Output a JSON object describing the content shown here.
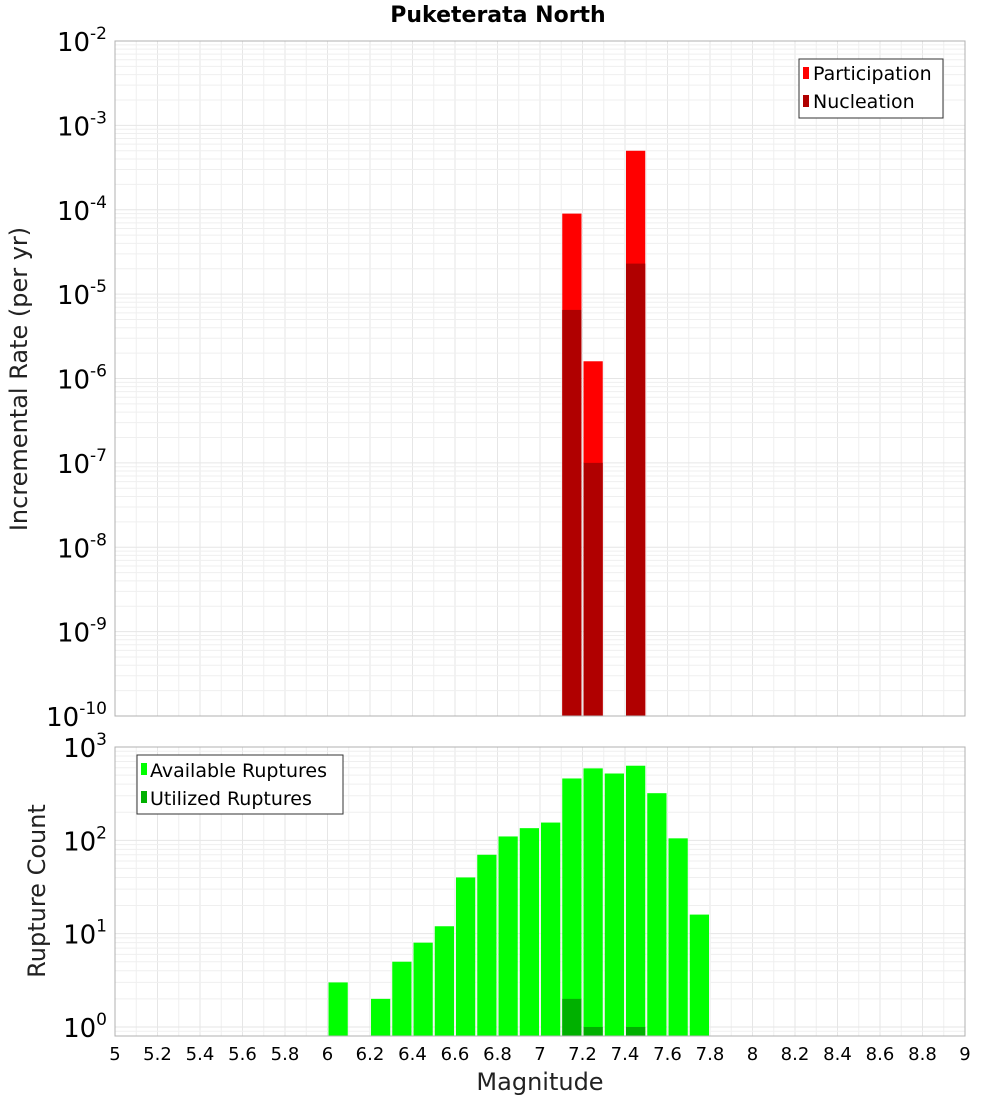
{
  "chart_data": [
    {
      "type": "bar",
      "title": "Puketerata North",
      "xlabel": "",
      "ylabel": "Incremental Rate (per yr)",
      "yscale": "log",
      "ylim": [
        1e-10,
        0.01
      ],
      "xlim": [
        5,
        9
      ],
      "y_ticks": [
        {
          "base": "10",
          "exp": "-2"
        },
        {
          "base": "10",
          "exp": "-3"
        },
        {
          "base": "10",
          "exp": "-4"
        },
        {
          "base": "10",
          "exp": "-5"
        },
        {
          "base": "10",
          "exp": "-6"
        },
        {
          "base": "10",
          "exp": "-7"
        },
        {
          "base": "10",
          "exp": "-8"
        },
        {
          "base": "10",
          "exp": "-9"
        },
        {
          "base": "10",
          "exp": "-10"
        }
      ],
      "legend_position": "top-right",
      "series": [
        {
          "name": "Participation",
          "color": "#ff0000",
          "points": [
            {
              "x": 7.15,
              "y": 9e-05
            },
            {
              "x": 7.25,
              "y": 1.6e-06
            },
            {
              "x": 7.45,
              "y": 0.0005
            }
          ]
        },
        {
          "name": "Nucleation",
          "color": "#b00000",
          "points": [
            {
              "x": 7.15,
              "y": 6.5e-06
            },
            {
              "x": 7.25,
              "y": 1e-07
            },
            {
              "x": 7.45,
              "y": 2.3e-05
            }
          ]
        }
      ]
    },
    {
      "type": "bar",
      "title": "",
      "xlabel": "Magnitude",
      "ylabel": "Rupture Count",
      "yscale": "log",
      "ylim": [
        0.8,
        1000
      ],
      "xlim": [
        5,
        9
      ],
      "x_ticks": [
        "5",
        "5.2",
        "5.4",
        "5.6",
        "5.8",
        "6",
        "6.2",
        "6.4",
        "6.6",
        "6.8",
        "7",
        "7.2",
        "7.4",
        "7.6",
        "7.8",
        "8",
        "8.2",
        "8.4",
        "8.6",
        "8.8",
        "9"
      ],
      "y_ticks": [
        {
          "base": "10",
          "exp": "3"
        },
        {
          "base": "10",
          "exp": "2"
        },
        {
          "base": "10",
          "exp": "1"
        },
        {
          "base": "10",
          "exp": "0"
        }
      ],
      "legend_position": "top-left",
      "series": [
        {
          "name": "Available Ruptures",
          "color": "#00ff00",
          "points": [
            {
              "x": 6.05,
              "y": 3
            },
            {
              "x": 6.25,
              "y": 2
            },
            {
              "x": 6.35,
              "y": 5
            },
            {
              "x": 6.45,
              "y": 8
            },
            {
              "x": 6.55,
              "y": 12
            },
            {
              "x": 6.65,
              "y": 40
            },
            {
              "x": 6.75,
              "y": 70
            },
            {
              "x": 6.85,
              "y": 110
            },
            {
              "x": 6.95,
              "y": 135
            },
            {
              "x": 7.05,
              "y": 155
            },
            {
              "x": 7.15,
              "y": 460
            },
            {
              "x": 7.25,
              "y": 590
            },
            {
              "x": 7.35,
              "y": 520
            },
            {
              "x": 7.45,
              "y": 630
            },
            {
              "x": 7.55,
              "y": 320
            },
            {
              "x": 7.65,
              "y": 105
            },
            {
              "x": 7.75,
              "y": 16
            }
          ]
        },
        {
          "name": "Utilized Ruptures",
          "color": "#00b000",
          "points": [
            {
              "x": 7.15,
              "y": 2
            },
            {
              "x": 7.25,
              "y": 1
            },
            {
              "x": 7.45,
              "y": 1
            }
          ]
        }
      ]
    }
  ]
}
